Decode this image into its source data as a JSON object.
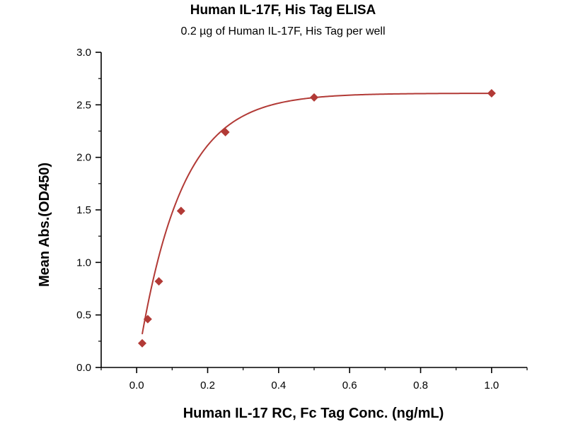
{
  "chart_data": {
    "type": "scatter",
    "title": "Human IL-17F, His Tag ELISA",
    "subtitle": "0.2 µg of Human IL-17F, His Tag per well",
    "xlabel": "Human IL-17 RC, Fc Tag Conc. (ng/mL)",
    "ylabel": "Mean Abs.(OD450)",
    "xlim": [
      -0.1,
      1.1
    ],
    "ylim": [
      0.0,
      3.0
    ],
    "x_ticks": [
      "0.0",
      "0.2",
      "0.4",
      "0.6",
      "0.8",
      "1.0"
    ],
    "y_ticks": [
      "0.0",
      "0.5",
      "1.0",
      "1.5",
      "2.0",
      "2.5",
      "3.0"
    ],
    "grid": false,
    "colors": {
      "marker": "#B23A36",
      "curve": "#B23A36",
      "axis": "#000000"
    },
    "series": [
      {
        "points": [
          {
            "x": 0.0156,
            "y": 0.23
          },
          {
            "x": 0.03125,
            "y": 0.46
          },
          {
            "x": 0.0625,
            "y": 0.82
          },
          {
            "x": 0.125,
            "y": 1.49
          },
          {
            "x": 0.25,
            "y": 2.24
          },
          {
            "x": 0.5,
            "y": 2.57
          },
          {
            "x": 1.0,
            "y": 2.61
          }
        ]
      }
    ],
    "fit": {
      "model": "exponential",
      "top": 2.61,
      "k": 8.3,
      "from": 0.0156,
      "to": 1.0
    }
  }
}
